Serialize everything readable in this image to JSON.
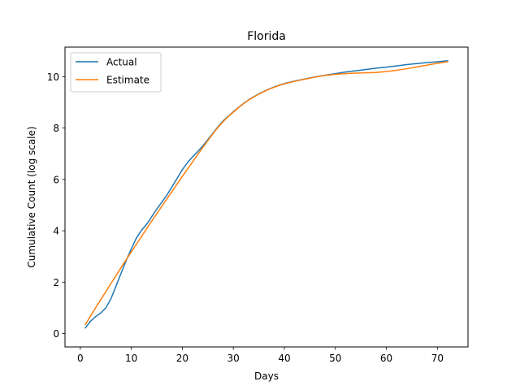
{
  "chart_data": {
    "type": "line",
    "title": "Florida",
    "xlabel": "Days",
    "ylabel": "Cumulative Count (log scale)",
    "xlim": [
      -3,
      76
    ],
    "ylim": [
      -0.52,
      11.15
    ],
    "xticks": [
      0,
      10,
      20,
      30,
      40,
      50,
      60,
      70
    ],
    "yticks": [
      0,
      2,
      4,
      6,
      8,
      10
    ],
    "grid": false,
    "legend_position": "upper-left",
    "series": [
      {
        "name": "Actual",
        "color": "#1f77b4",
        "points": [
          [
            1,
            0.22
          ],
          [
            2,
            0.48
          ],
          [
            3,
            0.66
          ],
          [
            4,
            0.8
          ],
          [
            5,
            1.0
          ],
          [
            6,
            1.35
          ],
          [
            7,
            1.85
          ],
          [
            8,
            2.35
          ],
          [
            9,
            2.85
          ],
          [
            10,
            3.3
          ],
          [
            11,
            3.72
          ],
          [
            12,
            4.02
          ],
          [
            13,
            4.25
          ],
          [
            14,
            4.55
          ],
          [
            15,
            4.85
          ],
          [
            16,
            5.12
          ],
          [
            17,
            5.4
          ],
          [
            18,
            5.72
          ],
          [
            19,
            6.05
          ],
          [
            20,
            6.38
          ],
          [
            21,
            6.65
          ],
          [
            22,
            6.88
          ],
          [
            23,
            7.08
          ],
          [
            24,
            7.3
          ],
          [
            25,
            7.55
          ],
          [
            26,
            7.8
          ],
          [
            27,
            8.05
          ],
          [
            28,
            8.28
          ],
          [
            29,
            8.46
          ],
          [
            30,
            8.64
          ],
          [
            31,
            8.8
          ],
          [
            32,
            8.96
          ],
          [
            33,
            9.1
          ],
          [
            34,
            9.22
          ],
          [
            35,
            9.33
          ],
          [
            36,
            9.43
          ],
          [
            37,
            9.52
          ],
          [
            38,
            9.6
          ],
          [
            39,
            9.67
          ],
          [
            40,
            9.73
          ],
          [
            42,
            9.83
          ],
          [
            44,
            9.91
          ],
          [
            46,
            9.99
          ],
          [
            48,
            10.06
          ],
          [
            50,
            10.12
          ],
          [
            52,
            10.18
          ],
          [
            54,
            10.23
          ],
          [
            56,
            10.28
          ],
          [
            58,
            10.33
          ],
          [
            60,
            10.37
          ],
          [
            62,
            10.42
          ],
          [
            64,
            10.47
          ],
          [
            66,
            10.51
          ],
          [
            68,
            10.55
          ],
          [
            70,
            10.58
          ],
          [
            72,
            10.62
          ]
        ]
      },
      {
        "name": "Estimate",
        "color": "#ff7f0e",
        "points": [
          [
            1,
            0.35
          ],
          [
            2,
            0.68
          ],
          [
            3,
            1.0
          ],
          [
            4,
            1.32
          ],
          [
            5,
            1.63
          ],
          [
            6,
            1.95
          ],
          [
            7,
            2.26
          ],
          [
            8,
            2.57
          ],
          [
            9,
            2.88
          ],
          [
            10,
            3.18
          ],
          [
            11,
            3.48
          ],
          [
            12,
            3.78
          ],
          [
            13,
            4.08
          ],
          [
            14,
            4.38
          ],
          [
            15,
            4.67
          ],
          [
            16,
            4.96
          ],
          [
            17,
            5.25
          ],
          [
            18,
            5.54
          ],
          [
            19,
            5.83
          ],
          [
            20,
            6.12
          ],
          [
            21,
            6.4
          ],
          [
            22,
            6.68
          ],
          [
            23,
            6.96
          ],
          [
            24,
            7.24
          ],
          [
            25,
            7.51
          ],
          [
            26,
            7.78
          ],
          [
            27,
            8.03
          ],
          [
            28,
            8.25
          ],
          [
            29,
            8.45
          ],
          [
            30,
            8.62
          ],
          [
            31,
            8.79
          ],
          [
            32,
            8.95
          ],
          [
            33,
            9.09
          ],
          [
            34,
            9.21
          ],
          [
            35,
            9.32
          ],
          [
            36,
            9.42
          ],
          [
            37,
            9.51
          ],
          [
            38,
            9.59
          ],
          [
            39,
            9.66
          ],
          [
            40,
            9.72
          ],
          [
            42,
            9.82
          ],
          [
            44,
            9.9
          ],
          [
            46,
            9.98
          ],
          [
            48,
            10.05
          ],
          [
            50,
            10.09
          ],
          [
            52,
            10.12
          ],
          [
            54,
            10.14
          ],
          [
            56,
            10.15
          ],
          [
            58,
            10.16
          ],
          [
            60,
            10.2
          ],
          [
            62,
            10.25
          ],
          [
            64,
            10.31
          ],
          [
            66,
            10.38
          ],
          [
            68,
            10.45
          ],
          [
            70,
            10.52
          ],
          [
            72,
            10.58
          ]
        ]
      }
    ]
  }
}
